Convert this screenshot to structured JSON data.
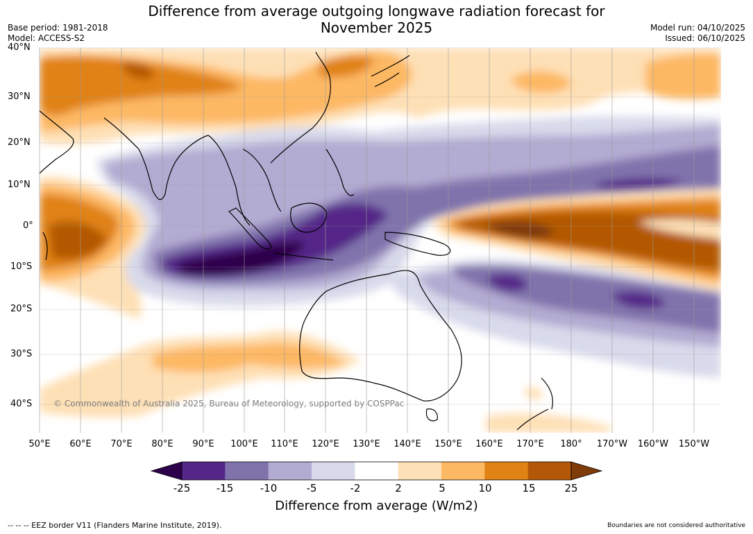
{
  "title": "Difference from average outgoing longwave radiation forecast for November 2025",
  "title_line1": "Difference from average outgoing longwave radiation forecast for",
  "title_line2": "November 2025",
  "base_period": "Base period: 1981-2018",
  "model": "Model: ACCESS-S2",
  "model_run": "Model run: 04/10/2025",
  "issued": "Issued: 06/10/2025",
  "copyright": "© Commonwealth of Australia 2025, Bureau of Meteorology, supported by COSPPac",
  "lat_labels": [
    "40°N",
    "30°N",
    "20°N",
    "10°N",
    "0°",
    "10°S",
    "20°S",
    "30°S",
    "40°S"
  ],
  "lon_labels": [
    "50°E",
    "60°E",
    "70°E",
    "80°E",
    "90°E",
    "100°E",
    "110°E",
    "120°E",
    "130°E",
    "140°E",
    "150°E",
    "160°E",
    "170°E",
    "180°",
    "170°W",
    "160°W",
    "150°W"
  ],
  "colorbar": {
    "ticks": [
      "-25",
      "-15",
      "-10",
      "-5",
      "-2",
      "2",
      "5",
      "10",
      "15",
      "25"
    ],
    "colors": [
      "#2d004b",
      "#542788",
      "#8073ac",
      "#b2abd2",
      "#d8daeb",
      "#ffffff",
      "#fee0b6",
      "#fdb863",
      "#e08214",
      "#b35806",
      "#7f3b08"
    ],
    "label": "Difference from average (W/m2)"
  },
  "eez_note": "--  --  -- EEZ border V11 (Flanders Marine Institute, 2019).",
  "boundaries_note": "Boundaries are not considered authoritative"
}
